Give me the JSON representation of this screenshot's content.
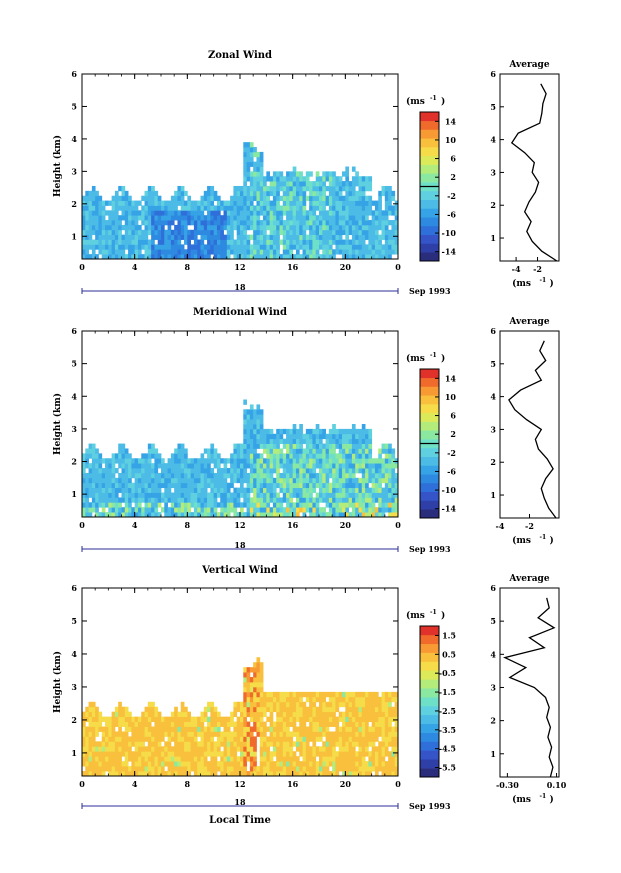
{
  "unit_label": "(ms",
  "unit_sup": "-1",
  "xaxis_label": "Local Time",
  "date_label": "Sep 1993",
  "day_label": "18",
  "colors": {
    "scale": [
      "#2a2d7c",
      "#2f3fa8",
      "#3454c8",
      "#2f6fd9",
      "#2e8ae0",
      "#36a3e6",
      "#4cbce6",
      "#5fd0e0",
      "#6fe0c8",
      "#8ae8a0",
      "#b4ec7c",
      "#dcea5a",
      "#f5dc48",
      "#f8c03c",
      "#f79a34",
      "#f06a2c",
      "#e0322a"
    ]
  },
  "chart_data": [
    {
      "type": "heatmap",
      "title": "Zonal Wind",
      "ylabel": "Height (km)",
      "xlim": [
        0,
        24
      ],
      "ylim": [
        0.3,
        6
      ],
      "x_ticks": [
        "0",
        "4",
        "8",
        "12",
        "16",
        "20",
        "0"
      ],
      "y_ticks": [
        "1",
        "2",
        "3",
        "4",
        "5",
        "6"
      ],
      "colorbar": {
        "ticks": [
          "14",
          "10",
          "6",
          "2",
          "-2",
          "-6",
          "-10",
          "-14"
        ],
        "range": [
          -16,
          16
        ]
      },
      "profile": {
        "title": "Average",
        "x_ticks": [
          "-4",
          "-2"
        ],
        "xlim": [
          -5.5,
          0
        ],
        "heights": [
          0.3,
          0.6,
          0.9,
          1.2,
          1.5,
          1.8,
          2.1,
          2.4,
          2.7,
          3.0,
          3.3,
          3.6,
          3.9,
          4.2,
          4.5,
          4.8,
          5.1,
          5.4,
          5.7
        ],
        "values": [
          -0.2,
          -1.6,
          -2.5,
          -3.0,
          -2.6,
          -3.2,
          -2.8,
          -2.2,
          -1.9,
          -2.5,
          -2.3,
          -3.2,
          -4.4,
          -3.8,
          -1.8,
          -1.6,
          -1.5,
          -1.2,
          -1.7
        ]
      }
    },
    {
      "type": "heatmap",
      "title": "Meridional Wind",
      "ylabel": "Height (km)",
      "xlim": [
        0,
        24
      ],
      "ylim": [
        0.3,
        6
      ],
      "x_ticks": [
        "0",
        "4",
        "8",
        "12",
        "16",
        "20",
        "0"
      ],
      "y_ticks": [
        "1",
        "2",
        "3",
        "4",
        "5",
        "6"
      ],
      "colorbar": {
        "ticks": [
          "14",
          "10",
          "6",
          "2",
          "-2",
          "-6",
          "-10",
          "-14"
        ],
        "range": [
          -16,
          16
        ]
      },
      "profile": {
        "title": "Average",
        "x_ticks": [
          "-4",
          "-2"
        ],
        "xlim": [
          -4,
          0
        ],
        "heights": [
          0.3,
          0.6,
          0.9,
          1.2,
          1.5,
          1.8,
          2.1,
          2.4,
          2.7,
          3.0,
          3.3,
          3.6,
          3.9,
          4.2,
          4.5,
          4.8,
          5.1,
          5.4,
          5.7
        ],
        "values": [
          -0.2,
          -0.7,
          -1.0,
          -1.2,
          -0.9,
          -0.4,
          -0.8,
          -1.4,
          -1.6,
          -1.2,
          -2.2,
          -3.0,
          -3.4,
          -2.6,
          -1.2,
          -1.6,
          -0.9,
          -1.3,
          -1.0
        ]
      }
    },
    {
      "type": "heatmap",
      "title": "Vertical Wind",
      "ylabel": "Height (km)",
      "xlabel": "Local Time",
      "xlim": [
        0,
        24
      ],
      "ylim": [
        0.3,
        6
      ],
      "x_ticks": [
        "0",
        "4",
        "8",
        "12",
        "16",
        "20",
        "0"
      ],
      "y_ticks": [
        "1",
        "2",
        "3",
        "4",
        "5",
        "6"
      ],
      "colorbar": {
        "ticks": [
          "1.5",
          "0.5",
          "-0.5",
          "-1.5",
          "-2.5",
          "-3.5",
          "-4.5",
          "-5.5"
        ],
        "range": [
          -6,
          2
        ]
      },
      "profile": {
        "title": "Average",
        "x_ticks": [
          "-0.30",
          "0.10"
        ],
        "xlim": [
          -0.36,
          0.12
        ],
        "heights": [
          0.3,
          0.6,
          0.9,
          1.2,
          1.5,
          1.8,
          2.1,
          2.4,
          2.7,
          3.0,
          3.3,
          3.6,
          3.9,
          4.2,
          4.5,
          4.8,
          5.1,
          5.4,
          5.7
        ],
        "values": [
          0.05,
          0.07,
          0.04,
          0.06,
          0.03,
          0.05,
          0.02,
          0.04,
          0.01,
          -0.08,
          -0.28,
          -0.15,
          -0.32,
          0.0,
          -0.12,
          0.08,
          -0.05,
          0.04,
          0.02
        ]
      }
    }
  ]
}
